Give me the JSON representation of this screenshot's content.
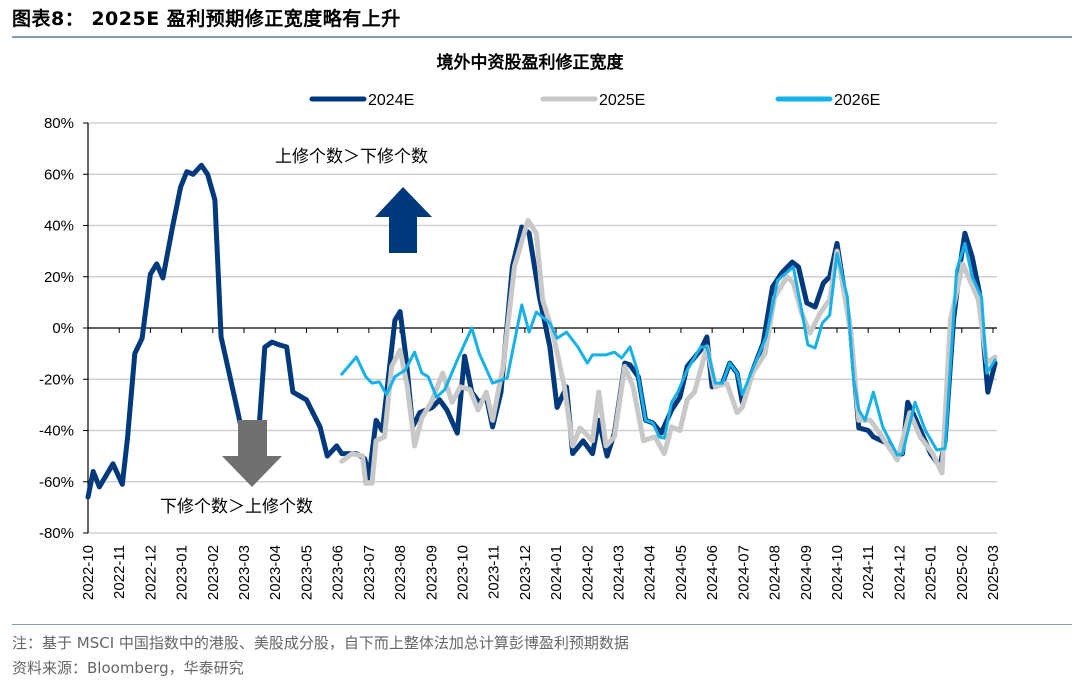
{
  "header": {
    "figure_title": "图表8：  2025E 盈利预期修正宽度略有上升"
  },
  "footer": {
    "note": "注：基于 MSCI 中国指数中的港股、美股成分股，自下而上整体法加总计算彭博盈利预期数据",
    "source": "资料来源：Bloomberg，华泰研究"
  },
  "chart_data": {
    "type": "line",
    "title": "境外中资股盈利修正宽度",
    "ylim": [
      -80,
      80
    ],
    "y_ticks": [
      "80%",
      "60%",
      "40%",
      "20%",
      "0%",
      "-20%",
      "-40%",
      "-60%",
      "-80%"
    ],
    "y_tick_values": [
      80,
      60,
      40,
      20,
      0,
      -20,
      -40,
      -60,
      -80
    ],
    "x_ticks": [
      "2022-10",
      "2022-11",
      "2022-12",
      "2023-01",
      "2023-02",
      "2023-03",
      "2023-04",
      "2023-05",
      "2023-06",
      "2023-07",
      "2023-08",
      "2023-09",
      "2023-10",
      "2023-11",
      "2023-12",
      "2024-01",
      "2024-02",
      "2024-03",
      "2024-04",
      "2024-05",
      "2024-06",
      "2024-07",
      "2024-08",
      "2024-09",
      "2024-10",
      "2024-11",
      "2024-12",
      "2025-01",
      "2025-02",
      "2025-03"
    ],
    "grid": true,
    "legend_position": "top",
    "annotations": {
      "up_text": "上修个数＞下修个数",
      "down_text": "下修个数＞上修个数",
      "up_arrow_color": "#003a7d",
      "down_arrow_color": "#707070"
    },
    "series": [
      {
        "name": "2024E",
        "color": "#003a7d",
        "points": [
          [
            "2022-10-01",
            -66
          ],
          [
            "2022-10-06",
            -56
          ],
          [
            "2022-10-12",
            -62
          ],
          [
            "2022-10-25",
            -53
          ],
          [
            "2022-11-04",
            -61
          ],
          [
            "2022-11-09",
            -43
          ],
          [
            "2022-11-16",
            -10
          ],
          [
            "2022-11-23",
            -4
          ],
          [
            "2022-12-01",
            21
          ],
          [
            "2022-12-07",
            25
          ],
          [
            "2022-12-13",
            19.5
          ],
          [
            "2022-12-22",
            39
          ],
          [
            "2022-12-30",
            55
          ],
          [
            "2023-01-06",
            61
          ],
          [
            "2023-01-12",
            60
          ],
          [
            "2023-01-20",
            63.5
          ],
          [
            "2023-01-26",
            60
          ],
          [
            "2023-02-03",
            50
          ],
          [
            "2023-02-09",
            -3.5
          ],
          [
            "2023-02-24",
            -31
          ],
          [
            "2023-03-01",
            -44
          ],
          [
            "2023-03-16",
            -36
          ],
          [
            "2023-03-21",
            -7.5
          ],
          [
            "2023-03-28",
            -5.5
          ],
          [
            "2023-04-05",
            -6.6
          ],
          [
            "2023-04-12",
            -7.4
          ],
          [
            "2023-04-18",
            -25
          ],
          [
            "2023-05-01",
            -28
          ],
          [
            "2023-05-14",
            -38.6
          ],
          [
            "2023-05-21",
            -50
          ],
          [
            "2023-05-30",
            -46
          ],
          [
            "2023-06-05",
            -49
          ],
          [
            "2023-06-19",
            -49
          ],
          [
            "2023-06-27",
            -51
          ],
          [
            "2023-07-01",
            -58.5
          ],
          [
            "2023-07-08",
            -36
          ],
          [
            "2023-07-14",
            -40
          ],
          [
            "2023-07-26",
            3
          ],
          [
            "2023-08-01",
            6.4
          ],
          [
            "2023-08-07",
            -12.5
          ],
          [
            "2023-08-13",
            -38.6
          ],
          [
            "2023-08-20",
            -33
          ],
          [
            "2023-09-02",
            -31
          ],
          [
            "2023-09-09",
            -28
          ],
          [
            "2023-09-16",
            -32
          ],
          [
            "2023-09-26",
            -41
          ],
          [
            "2023-10-03",
            -11
          ],
          [
            "2023-10-10",
            -25
          ],
          [
            "2023-10-17",
            -29
          ],
          [
            "2023-10-24",
            -27
          ],
          [
            "2023-10-30",
            -38.6
          ],
          [
            "2023-11-08",
            -25
          ],
          [
            "2023-11-19",
            24
          ],
          [
            "2023-11-28",
            39.4
          ],
          [
            "2023-12-05",
            37
          ],
          [
            "2023-12-15",
            12
          ],
          [
            "2023-12-25",
            -7.4
          ],
          [
            "2024-01-02",
            -31
          ],
          [
            "2024-01-11",
            -23
          ],
          [
            "2024-01-17",
            -49
          ],
          [
            "2024-01-27",
            -44
          ],
          [
            "2024-02-06",
            -49
          ],
          [
            "2024-02-12",
            -36
          ],
          [
            "2024-02-20",
            -50
          ],
          [
            "2024-02-27",
            -41
          ],
          [
            "2024-03-07",
            -13.7
          ],
          [
            "2024-03-12",
            -14.4
          ],
          [
            "2024-03-20",
            -19
          ],
          [
            "2024-03-27",
            -36
          ],
          [
            "2024-04-04",
            -37
          ],
          [
            "2024-04-12",
            -41
          ],
          [
            "2024-04-22",
            -32
          ],
          [
            "2024-04-30",
            -27
          ],
          [
            "2024-05-07",
            -15
          ],
          [
            "2024-05-20",
            -8.6
          ],
          [
            "2024-05-26",
            -3.5
          ],
          [
            "2024-06-01",
            -23
          ],
          [
            "2024-06-11",
            -21.5
          ],
          [
            "2024-06-18",
            -13.7
          ],
          [
            "2024-06-25",
            -17.6
          ],
          [
            "2024-06-30",
            -29
          ],
          [
            "2024-07-09",
            -17.6
          ],
          [
            "2024-07-20",
            -6
          ],
          [
            "2024-07-29",
            16
          ],
          [
            "2024-08-08",
            21.5
          ],
          [
            "2024-08-18",
            25.7
          ],
          [
            "2024-08-24",
            23.8
          ],
          [
            "2024-09-02",
            9.8
          ],
          [
            "2024-09-10",
            8.2
          ],
          [
            "2024-09-18",
            17.6
          ],
          [
            "2024-09-24",
            20
          ],
          [
            "2024-10-01",
            33
          ],
          [
            "2024-10-14",
            -1
          ],
          [
            "2024-10-22",
            -39
          ],
          [
            "2024-10-31",
            -40
          ],
          [
            "2024-11-06",
            -42.5
          ],
          [
            "2024-11-19",
            -45
          ],
          [
            "2024-11-27",
            -50
          ],
          [
            "2024-12-04",
            -49
          ],
          [
            "2024-12-09",
            -29
          ],
          [
            "2024-12-16",
            -35
          ],
          [
            "2024-12-24",
            -42.5
          ],
          [
            "2024-12-31",
            -49
          ],
          [
            "2025-01-10",
            -54
          ],
          [
            "2025-01-15",
            -44
          ],
          [
            "2025-01-23",
            3
          ],
          [
            "2025-01-30",
            26.5
          ],
          [
            "2025-02-04",
            37
          ],
          [
            "2025-02-11",
            27.7
          ],
          [
            "2025-02-18",
            13.7
          ],
          [
            "2025-02-26",
            -25
          ],
          [
            "2025-03-03",
            -13.7
          ]
        ]
      },
      {
        "name": "2025E",
        "color": "#c8c8c8",
        "points": [
          [
            "2023-06-05",
            -52
          ],
          [
            "2023-06-15",
            -49
          ],
          [
            "2023-06-25",
            -50
          ],
          [
            "2023-06-28",
            -60.6
          ],
          [
            "2023-07-04",
            -60.6
          ],
          [
            "2023-07-08",
            -44
          ],
          [
            "2023-07-16",
            -42.5
          ],
          [
            "2023-07-23",
            -15
          ],
          [
            "2023-08-01",
            -8.6
          ],
          [
            "2023-08-08",
            -23
          ],
          [
            "2023-08-15",
            -46
          ],
          [
            "2023-08-22",
            -35
          ],
          [
            "2023-09-01",
            -29
          ],
          [
            "2023-09-12",
            -17.6
          ],
          [
            "2023-09-21",
            -29
          ],
          [
            "2023-09-29",
            -23
          ],
          [
            "2023-10-08",
            -24
          ],
          [
            "2023-10-16",
            -32
          ],
          [
            "2023-10-24",
            -25
          ],
          [
            "2023-10-30",
            -36
          ],
          [
            "2023-11-10",
            -15
          ],
          [
            "2023-11-21",
            24
          ],
          [
            "2023-12-04",
            42
          ],
          [
            "2023-12-12",
            37
          ],
          [
            "2023-12-18",
            11
          ],
          [
            "2023-12-28",
            -2
          ],
          [
            "2024-01-09",
            -23
          ],
          [
            "2024-01-17",
            -46
          ],
          [
            "2024-01-24",
            -39
          ],
          [
            "2024-02-06",
            -44
          ],
          [
            "2024-02-12",
            -25
          ],
          [
            "2024-02-19",
            -46
          ],
          [
            "2024-02-27",
            -42.5
          ],
          [
            "2024-03-07",
            -15
          ],
          [
            "2024-03-15",
            -23
          ],
          [
            "2024-03-25",
            -44
          ],
          [
            "2024-04-06",
            -42.5
          ],
          [
            "2024-04-15",
            -49
          ],
          [
            "2024-04-22",
            -38.6
          ],
          [
            "2024-04-30",
            -40
          ],
          [
            "2024-05-07",
            -28
          ],
          [
            "2024-05-14",
            -25
          ],
          [
            "2024-05-26",
            -7.4
          ],
          [
            "2024-06-04",
            -23
          ],
          [
            "2024-06-15",
            -21.5
          ],
          [
            "2024-06-25",
            -33
          ],
          [
            "2024-06-30",
            -31
          ],
          [
            "2024-07-10",
            -17.6
          ],
          [
            "2024-07-22",
            -9.8
          ],
          [
            "2024-08-01",
            12
          ],
          [
            "2024-08-13",
            20
          ],
          [
            "2024-08-19",
            17.6
          ],
          [
            "2024-08-27",
            5.9
          ],
          [
            "2024-09-05",
            -2
          ],
          [
            "2024-09-15",
            5.9
          ],
          [
            "2024-09-24",
            11
          ],
          [
            "2024-10-01",
            30
          ],
          [
            "2024-10-14",
            -1
          ],
          [
            "2024-10-22",
            -36
          ],
          [
            "2024-11-03",
            -36
          ],
          [
            "2024-11-12",
            -41
          ],
          [
            "2024-11-29",
            -51.5
          ],
          [
            "2024-12-11",
            -33
          ],
          [
            "2024-12-21",
            -42.5
          ],
          [
            "2025-01-03",
            -49
          ],
          [
            "2025-01-12",
            -56.6
          ],
          [
            "2025-01-20",
            3
          ],
          [
            "2025-02-02",
            25
          ],
          [
            "2025-02-17",
            11
          ],
          [
            "2025-02-25",
            -13.7
          ],
          [
            "2025-03-03",
            -11.3
          ]
        ]
      },
      {
        "name": "2026E",
        "color": "#15b1e8",
        "points": [
          [
            "2023-06-05",
            -18
          ],
          [
            "2023-06-19",
            -11.3
          ],
          [
            "2023-06-28",
            -19
          ],
          [
            "2023-07-04",
            -21.5
          ],
          [
            "2023-07-11",
            -21
          ],
          [
            "2023-07-18",
            -26
          ],
          [
            "2023-07-26",
            -19
          ],
          [
            "2023-08-06",
            -16.4
          ],
          [
            "2023-08-15",
            -9.4
          ],
          [
            "2023-08-22",
            -17.6
          ],
          [
            "2023-08-28",
            -19
          ],
          [
            "2023-09-06",
            -27
          ],
          [
            "2023-09-14",
            -24
          ],
          [
            "2023-09-26",
            -12.5
          ],
          [
            "2023-10-10",
            0
          ],
          [
            "2023-10-17",
            -9.8
          ],
          [
            "2023-10-30",
            -21.5
          ],
          [
            "2023-11-14",
            -19.5
          ],
          [
            "2023-11-28",
            9
          ],
          [
            "2023-12-05",
            -1.6
          ],
          [
            "2023-12-12",
            6.2
          ],
          [
            "2023-12-25",
            2
          ],
          [
            "2024-01-02",
            -4
          ],
          [
            "2024-01-11",
            -1.6
          ],
          [
            "2024-01-22",
            -7.4
          ],
          [
            "2024-02-01",
            -13.7
          ],
          [
            "2024-02-06",
            -10.5
          ],
          [
            "2024-02-19",
            -10.5
          ],
          [
            "2024-02-27",
            -9.4
          ],
          [
            "2024-03-04",
            -11.7
          ],
          [
            "2024-03-12",
            -7.4
          ],
          [
            "2024-03-19",
            -16.4
          ],
          [
            "2024-03-27",
            -36
          ],
          [
            "2024-04-04",
            -37
          ],
          [
            "2024-04-10",
            -42.5
          ],
          [
            "2024-04-15",
            -43
          ],
          [
            "2024-04-22",
            -29
          ],
          [
            "2024-04-28",
            -25
          ],
          [
            "2024-05-07",
            -16.4
          ],
          [
            "2024-05-20",
            -7.4
          ],
          [
            "2024-05-26",
            -7.4
          ],
          [
            "2024-06-04",
            -21.5
          ],
          [
            "2024-06-11",
            -21.5
          ],
          [
            "2024-06-18",
            -13.7
          ],
          [
            "2024-06-25",
            -17.6
          ],
          [
            "2024-06-30",
            -26
          ],
          [
            "2024-07-09",
            -17
          ],
          [
            "2024-07-23",
            -3.5
          ],
          [
            "2024-08-04",
            18.7
          ],
          [
            "2024-08-19",
            23.8
          ],
          [
            "2024-08-27",
            7
          ],
          [
            "2024-09-03",
            -6.6
          ],
          [
            "2024-09-10",
            -7.8
          ],
          [
            "2024-09-17",
            2
          ],
          [
            "2024-09-24",
            5
          ],
          [
            "2024-10-01",
            29
          ],
          [
            "2024-10-11",
            12
          ],
          [
            "2024-10-17",
            -20
          ],
          [
            "2024-10-22",
            -32
          ],
          [
            "2024-10-28",
            -36
          ],
          [
            "2024-11-06",
            -25
          ],
          [
            "2024-11-15",
            -38.6
          ],
          [
            "2024-11-29",
            -49.6
          ],
          [
            "2024-12-04",
            -49
          ],
          [
            "2024-12-16",
            -29
          ],
          [
            "2024-12-26",
            -40
          ],
          [
            "2025-01-07",
            -47.6
          ],
          [
            "2025-01-15",
            -47
          ],
          [
            "2025-01-26",
            22.6
          ],
          [
            "2025-02-04",
            33
          ],
          [
            "2025-02-11",
            20
          ],
          [
            "2025-02-20",
            12
          ],
          [
            "2025-02-25",
            -17.6
          ],
          [
            "2025-03-03",
            -12.5
          ]
        ]
      }
    ]
  }
}
